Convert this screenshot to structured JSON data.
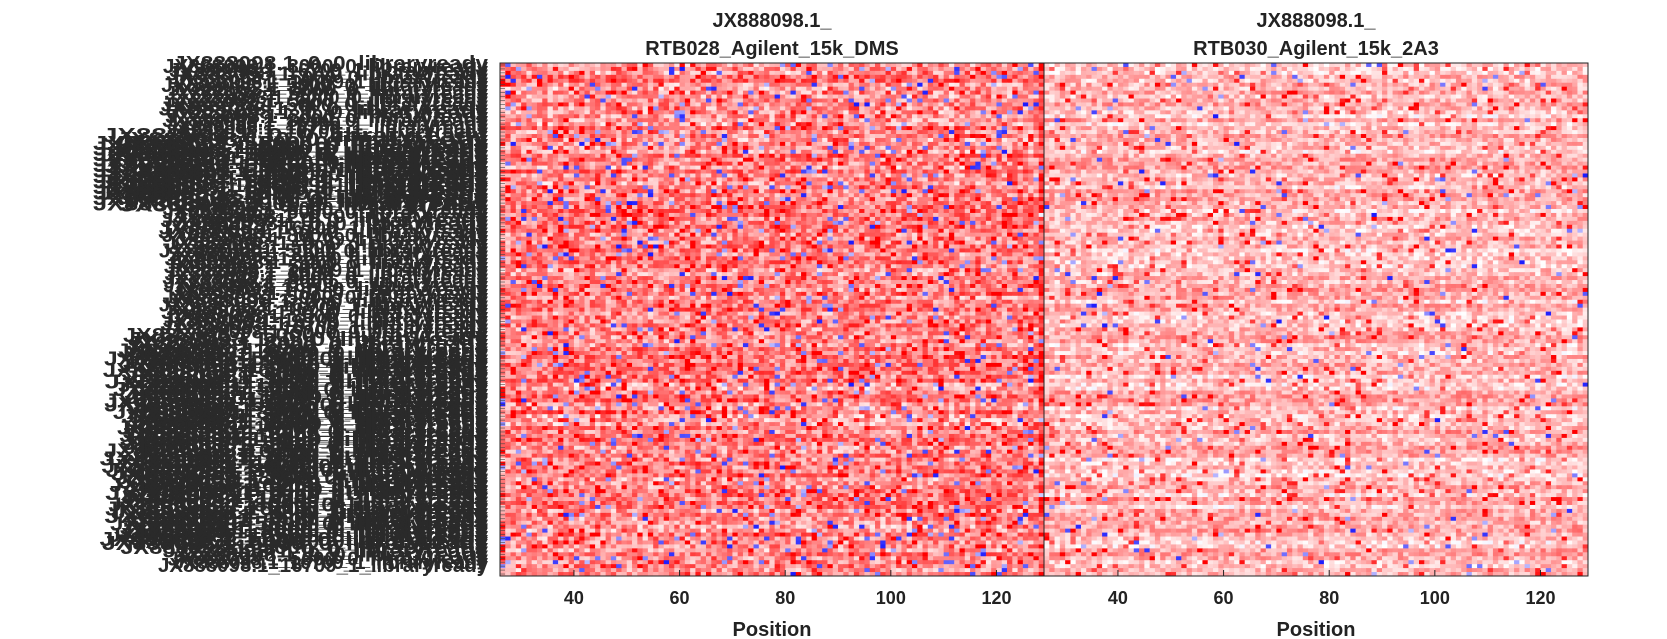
{
  "chart_data": [
    {
      "type": "heatmap",
      "title_lines": [
        "JX888098.1_",
        "RTB028_Agilent_15k_DMS"
      ],
      "xlabel": "Position",
      "xlim": [
        26,
        129
      ],
      "xticks": [
        40,
        60,
        80,
        100,
        120
      ],
      "rows": 130,
      "cols": 103,
      "colormap": [
        "#1a1aff",
        "#ffffff",
        "#ff0000"
      ],
      "value_range": [
        -1,
        1
      ],
      "seed": 28
    },
    {
      "type": "heatmap",
      "title_lines": [
        "JX888098.1_",
        "RTB030_Agilent_15k_2A3"
      ],
      "xlabel": "Position",
      "xlim": [
        26,
        129
      ],
      "xticks": [
        40,
        60,
        80,
        100,
        120
      ],
      "rows": 130,
      "cols": 103,
      "colormap": [
        "#1a1aff",
        "#ffffff",
        "#ff0000"
      ],
      "value_range": [
        -1,
        1
      ],
      "seed": 30
    }
  ],
  "ylabels": {
    "top_label": "JX888098.1_0_0_libraryready",
    "bottom_label": "JX888098.1_16709_1_libraryready",
    "left_label": "JX888098.1_5000_0_libraryready",
    "middle_label": "JX888098.1_8000_0_libraryready"
  }
}
